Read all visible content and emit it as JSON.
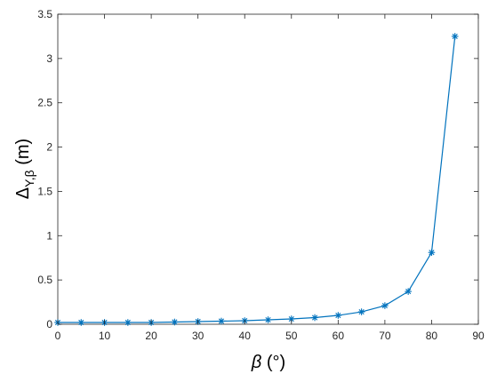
{
  "chart_data": {
    "type": "line",
    "title": "",
    "xlabel": {
      "symbol": "β",
      "unit": "(°)"
    },
    "ylabel": {
      "symbol": "Δ",
      "subscript": "Y,β",
      "unit": "(m)"
    },
    "xlim": [
      0,
      90
    ],
    "ylim": [
      0,
      3.5
    ],
    "xticks": [
      0,
      10,
      20,
      30,
      40,
      50,
      60,
      70,
      80,
      90
    ],
    "yticks": [
      0,
      0.5,
      1,
      1.5,
      2,
      2.5,
      3,
      3.5
    ],
    "xtick_labels": [
      "0",
      "10",
      "20",
      "30",
      "40",
      "50",
      "60",
      "70",
      "80",
      "90"
    ],
    "ytick_labels": [
      "0",
      "0.5",
      "1",
      "1.5",
      "2",
      "2.5",
      "3",
      "3.5"
    ],
    "grid": false,
    "legend": false,
    "marker": "*",
    "color": "#0072BD",
    "series": [
      {
        "x": [
          0,
          5,
          10,
          15,
          20,
          25,
          30,
          35,
          40,
          45,
          50,
          55,
          60,
          65,
          70,
          75,
          80,
          85
        ],
        "y": [
          0.02,
          0.02,
          0.02,
          0.02,
          0.02,
          0.025,
          0.03,
          0.035,
          0.04,
          0.05,
          0.06,
          0.075,
          0.1,
          0.14,
          0.21,
          0.37,
          0.81,
          3.25
        ]
      }
    ]
  }
}
